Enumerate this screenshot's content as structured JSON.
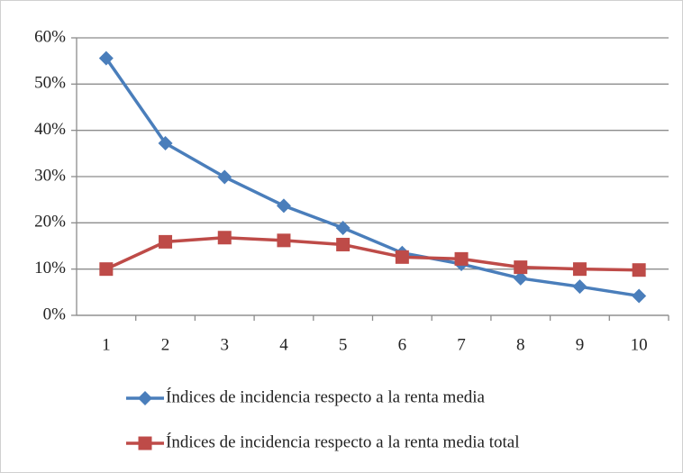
{
  "chart_data": {
    "type": "line",
    "categories": [
      "1",
      "2",
      "3",
      "4",
      "5",
      "6",
      "7",
      "8",
      "9",
      "10"
    ],
    "series": [
      {
        "name": "Índices de incidencia respecto a la renta media",
        "color": "#4a7ebb",
        "marker": "diamond",
        "values": [
          55.6,
          37.2,
          29.9,
          23.7,
          18.9,
          13.5,
          11.1,
          8.0,
          6.2,
          4.2
        ]
      },
      {
        "name": "Índices de incidencia respecto a la renta media total",
        "color": "#be4b48",
        "marker": "square",
        "values": [
          10.0,
          15.9,
          16.8,
          16.2,
          15.3,
          12.6,
          12.2,
          10.4,
          10.0,
          9.8
        ]
      }
    ],
    "ylim": [
      0,
      60
    ],
    "yticks": [
      {
        "value": 0,
        "label": "0%"
      },
      {
        "value": 10,
        "label": "10%"
      },
      {
        "value": 20,
        "label": "20%"
      },
      {
        "value": 30,
        "label": "30%"
      },
      {
        "value": 40,
        "label": "40%"
      },
      {
        "value": 50,
        "label": "50%"
      },
      {
        "value": 60,
        "label": "60%"
      }
    ],
    "grid": true,
    "legend": "bottom"
  }
}
